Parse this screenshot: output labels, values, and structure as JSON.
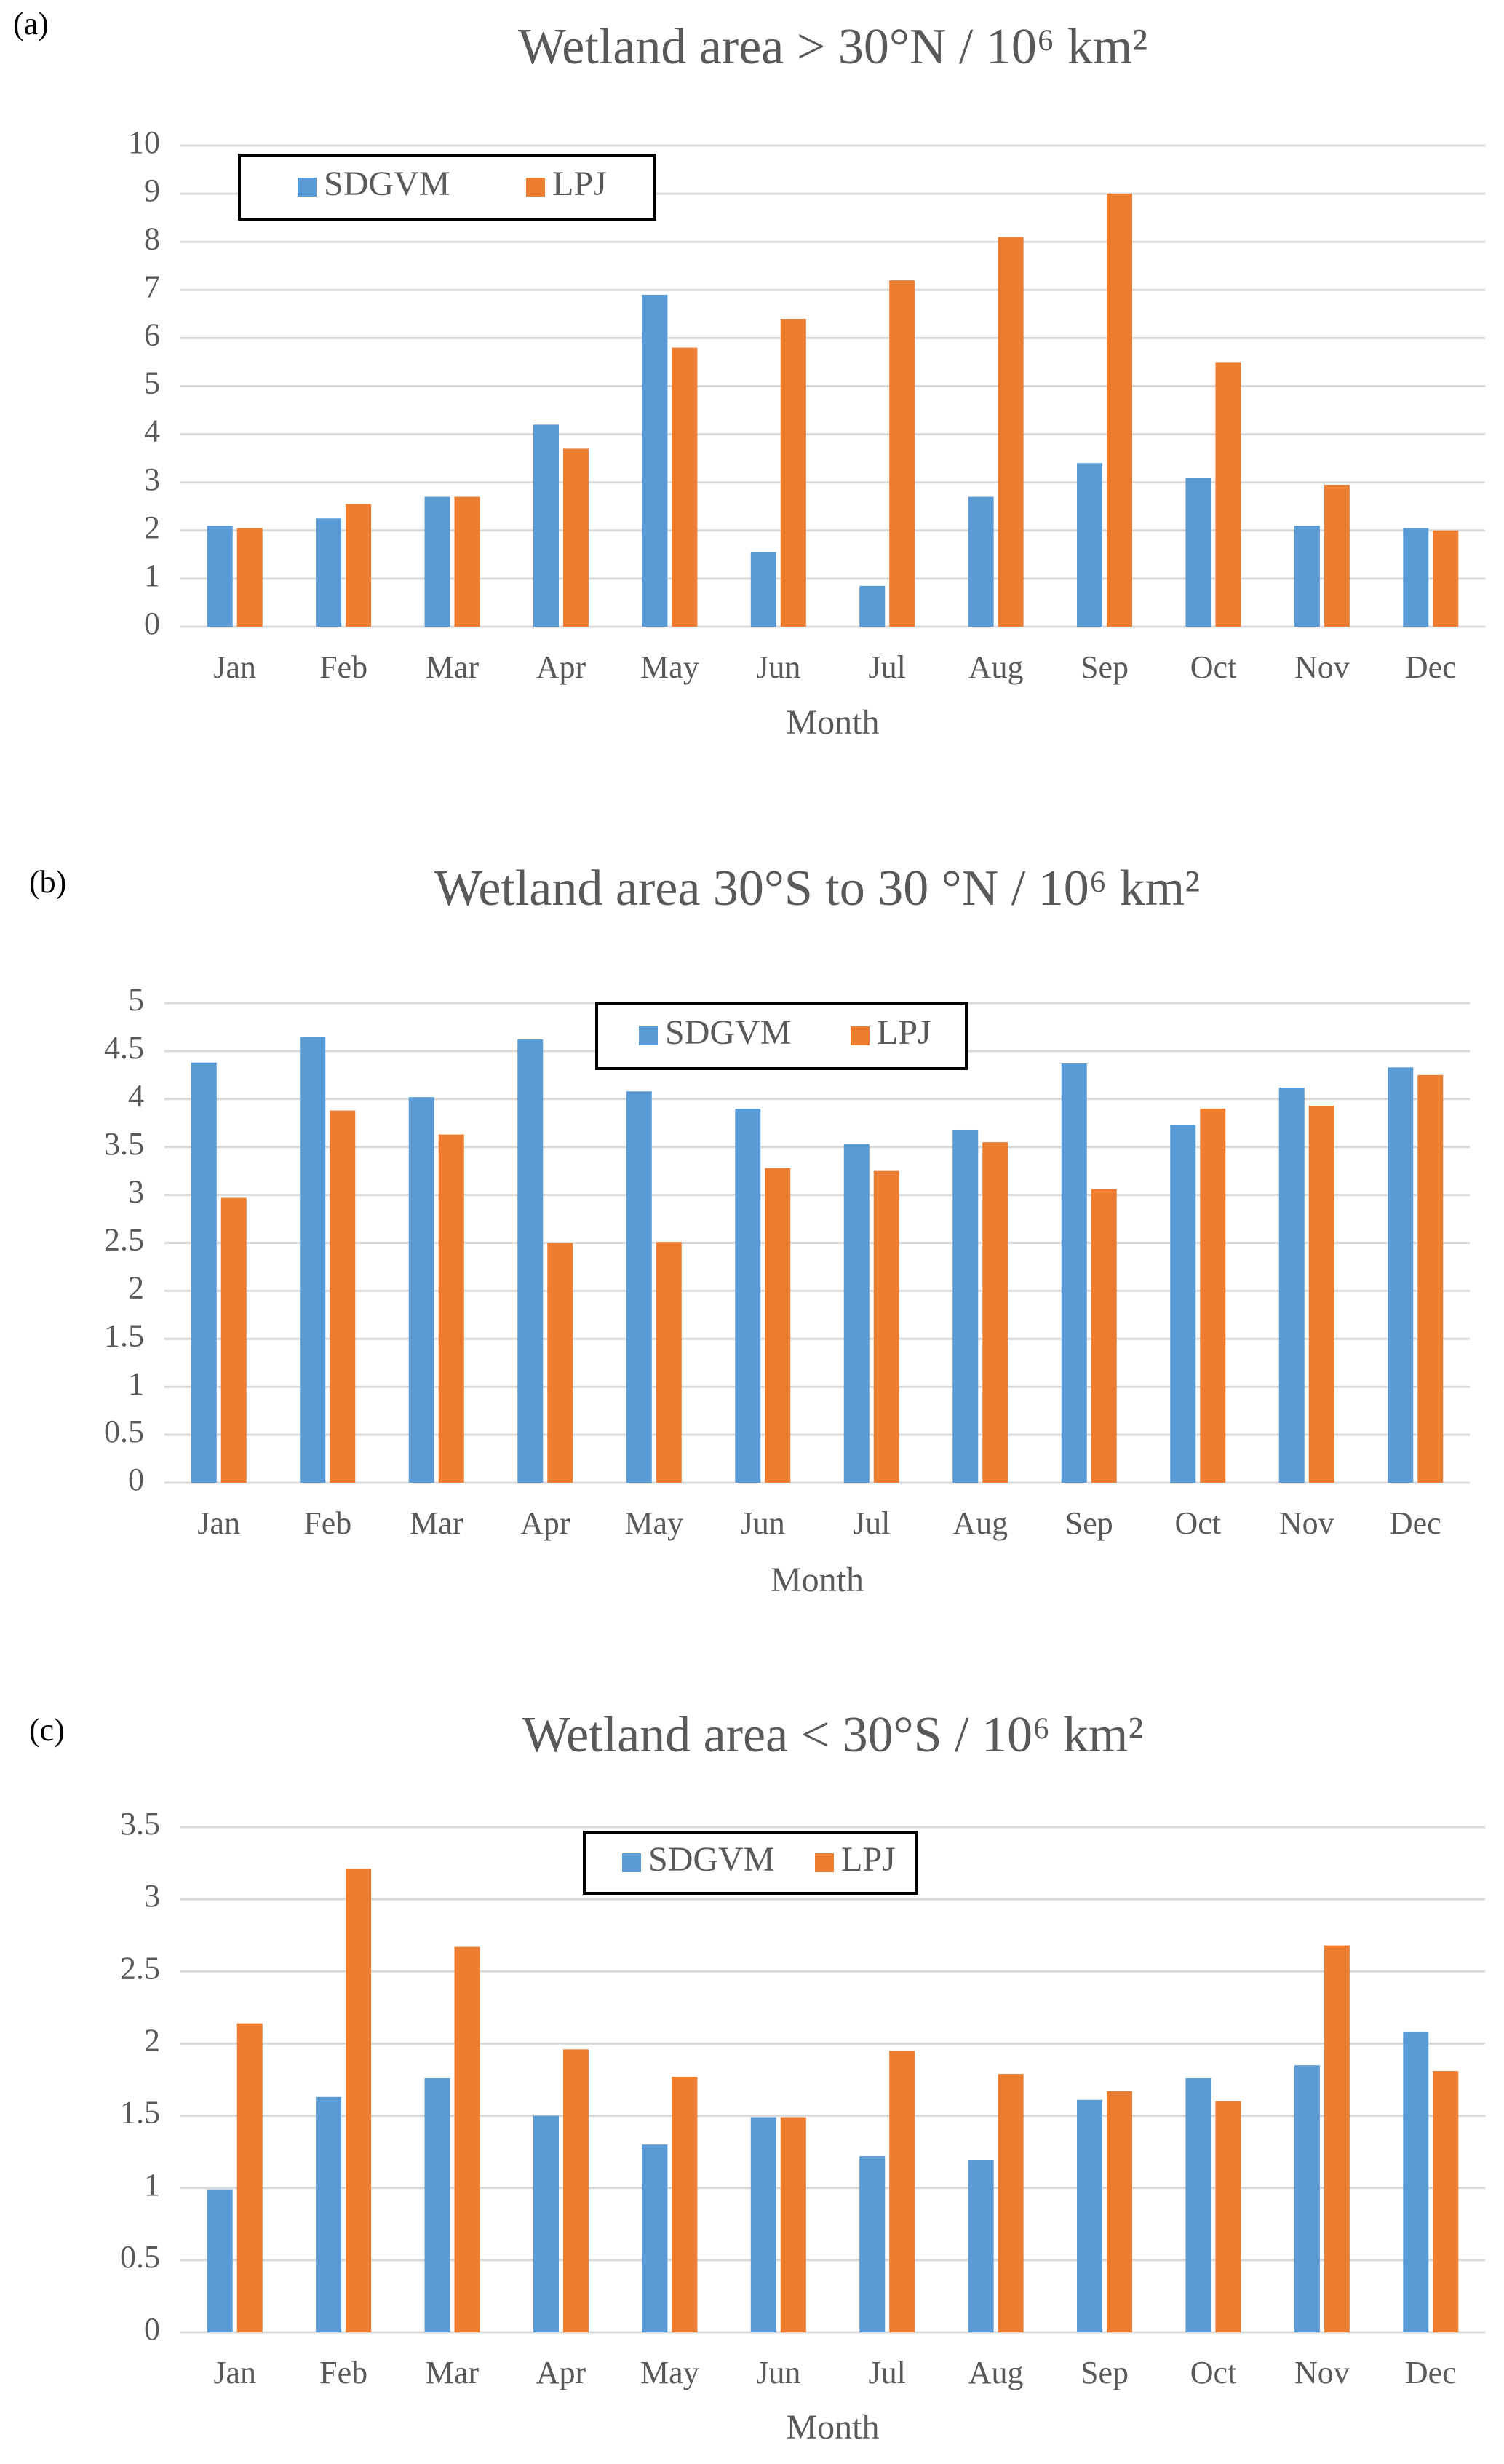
{
  "chart_data": [
    {
      "type": "bar",
      "panel_label": "(a)",
      "title": "Wetland area > 30°N / 10⁶ km²",
      "x_label": "Month",
      "categories": [
        "Jan",
        "Feb",
        "Mar",
        "Apr",
        "May",
        "Jun",
        "Jul",
        "Aug",
        "Sep",
        "Oct",
        "Nov",
        "Dec"
      ],
      "series": [
        {
          "name": "SDGVM",
          "color": "#5b9bd5",
          "values": [
            2.1,
            2.25,
            2.7,
            4.2,
            6.9,
            1.55,
            0.85,
            2.7,
            3.4,
            3.1,
            2.1,
            2.05
          ]
        },
        {
          "name": "LPJ",
          "color": "#ed7d31",
          "values": [
            2.05,
            2.55,
            2.7,
            3.7,
            5.8,
            6.4,
            7.2,
            8.1,
            9.0,
            5.5,
            2.95,
            2.0
          ]
        }
      ],
      "ylim": [
        0,
        10
      ],
      "yticks": [
        0,
        1,
        2,
        3,
        4,
        5,
        6,
        7,
        8,
        9,
        10
      ],
      "grid": true
    },
    {
      "type": "bar",
      "panel_label": "(b)",
      "title": "Wetland area 30°S to 30 °N / 10⁶ km²",
      "x_label": "Month",
      "categories": [
        "Jan",
        "Feb",
        "Mar",
        "Apr",
        "May",
        "Jun",
        "Jul",
        "Aug",
        "Sep",
        "Oct",
        "Nov",
        "Dec"
      ],
      "series": [
        {
          "name": "SDGVM",
          "color": "#5b9bd5",
          "values": [
            4.38,
            4.65,
            4.02,
            4.62,
            4.08,
            3.9,
            3.53,
            3.68,
            4.37,
            3.73,
            4.12,
            4.33
          ]
        },
        {
          "name": "LPJ",
          "color": "#ed7d31",
          "values": [
            2.97,
            3.88,
            3.63,
            2.5,
            2.51,
            3.28,
            3.25,
            3.55,
            3.06,
            3.9,
            3.93,
            4.25
          ]
        }
      ],
      "ylim": [
        0,
        5
      ],
      "yticks": [
        0,
        0.5,
        1,
        1.5,
        2,
        2.5,
        3,
        3.5,
        4,
        4.5,
        5
      ],
      "grid": true
    },
    {
      "type": "bar",
      "panel_label": "(c)",
      "title": "Wetland area < 30°S / 10⁶ km²",
      "x_label": "Month",
      "categories": [
        "Jan",
        "Feb",
        "Mar",
        "Apr",
        "May",
        "Jun",
        "Jul",
        "Aug",
        "Sep",
        "Oct",
        "Nov",
        "Dec"
      ],
      "series": [
        {
          "name": "SDGVM",
          "color": "#5b9bd5",
          "values": [
            0.99,
            1.63,
            1.76,
            1.5,
            1.3,
            1.49,
            1.22,
            1.19,
            1.61,
            1.76,
            1.85,
            2.08
          ]
        },
        {
          "name": "LPJ",
          "color": "#ed7d31",
          "values": [
            2.14,
            3.21,
            2.67,
            1.96,
            1.77,
            1.49,
            1.95,
            1.79,
            1.67,
            1.6,
            2.68,
            1.81
          ]
        }
      ],
      "ylim": [
        0,
        3.5
      ],
      "yticks": [
        0,
        0.5,
        1,
        1.5,
        2,
        2.5,
        3,
        3.5
      ],
      "grid": true
    }
  ]
}
